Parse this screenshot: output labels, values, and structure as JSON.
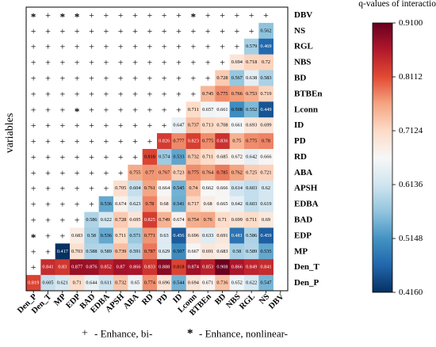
{
  "chart_data": {
    "type": "heatmap",
    "ylabel": "variables",
    "colorbar": {
      "title": "q-values of interaction",
      "min": 0.416,
      "max": 0.91,
      "ticks": [
        "0.9100",
        "0.8112",
        "0.7124",
        "0.6136",
        "0.5148",
        "0.4160"
      ],
      "colors": [
        "#053061",
        "#2166ac",
        "#4393c3",
        "#92c5de",
        "#d1e5f0",
        "#f7f7f7",
        "#fddbc7",
        "#f4a582",
        "#e34a33",
        "#b2182b",
        "#67001f"
      ]
    },
    "variables": [
      "Den_P",
      "Den_T",
      "MP",
      "EDP",
      "BAD",
      "EDBA",
      "APSH",
      "ABA",
      "RD",
      "PD",
      "ID",
      "Lconn",
      "BTBEn",
      "BD",
      "NBS",
      "RGL",
      "NS",
      "DBV"
    ],
    "rows": [
      {
        "label": "DBV",
        "values": [],
        "marks": [
          "*",
          "+",
          "*",
          "*",
          "+",
          "+",
          "+",
          "+",
          "+",
          "+",
          "+",
          "*",
          "+",
          "+",
          "+",
          "+",
          "+"
        ]
      },
      {
        "label": "NS",
        "values": [
          "0.562"
        ],
        "marks": [
          "+",
          "+",
          "+",
          "+",
          "+",
          "+",
          "+",
          "+",
          "+",
          "+",
          "+",
          "+",
          "+",
          "+",
          "+",
          "+"
        ]
      },
      {
        "label": "RGL",
        "values": [
          "0.579",
          "0.469"
        ],
        "marks": [
          "+",
          "+",
          "+",
          "+",
          "+",
          "+",
          "+",
          "+",
          "+",
          "+",
          "+",
          "+",
          "+",
          "+",
          "+"
        ]
      },
      {
        "label": "NBS",
        "values": [
          "0.694",
          "0.718",
          "0.72"
        ],
        "marks": [
          "+",
          "+",
          "+",
          "+",
          "+",
          "+",
          "+",
          "+",
          "+",
          "+",
          "+",
          "+",
          "+",
          "+"
        ]
      },
      {
        "label": "BD",
        "values": [
          "0.728",
          "0.567",
          "0.638",
          "0.583"
        ],
        "marks": [
          "+",
          "+",
          "+",
          "+",
          "+",
          "+",
          "+",
          "+",
          "+",
          "+",
          "+",
          "+",
          "+"
        ]
      },
      {
        "label": "BTBEn",
        "values": [
          "0.745",
          "0.775",
          "0.766",
          "0.753",
          "0.719"
        ],
        "marks": [
          "+",
          "+",
          "+",
          "+",
          "+",
          "+",
          "+",
          "+",
          "+",
          "+",
          "+",
          "+"
        ]
      },
      {
        "label": "Lconn",
        "values": [
          "0.711",
          "0.657",
          "0.661",
          "0.508",
          "0.552",
          "0.449"
        ],
        "marks": [
          "+",
          "+",
          "+",
          "*",
          "+",
          "+",
          "+",
          "+",
          "+",
          "+",
          "+"
        ]
      },
      {
        "label": "ID",
        "values": [
          "0.647",
          "0.737",
          "0.713",
          "0.708",
          "0.661",
          "0.693",
          "0.699"
        ],
        "marks": [
          "+",
          "+",
          "+",
          "+",
          "+",
          "+",
          "+",
          "+",
          "+",
          "+"
        ]
      },
      {
        "label": "PD",
        "values": [
          "0.826",
          "0.777",
          "0.823",
          "0.775",
          "0.836",
          "0.75",
          "0.775",
          "0.78"
        ],
        "marks": [
          "+",
          "+",
          "+",
          "+",
          "+",
          "+",
          "+",
          "+",
          "+"
        ]
      },
      {
        "label": "RD",
        "values": [
          "0.818",
          "0.574",
          "0.533",
          "0.732",
          "0.711",
          "0.685",
          "0.672",
          "0.642",
          "0.666"
        ],
        "marks": [
          "+",
          "+",
          "+",
          "+",
          "+",
          "+",
          "+",
          "+"
        ]
      },
      {
        "label": "ABA",
        "values": [
          "0.755",
          "0.77",
          "0.767",
          "0.723",
          "0.775",
          "0.764",
          "0.785",
          "0.762",
          "0.725",
          "0.721"
        ],
        "marks": [
          "+",
          "+",
          "+",
          "+",
          "+",
          "+",
          "+"
        ]
      },
      {
        "label": "APSH",
        "values": [
          "0.705",
          "0.604",
          "0.761",
          "0.664",
          "0.545",
          "0.74",
          "0.662",
          "0.666",
          "0.614",
          "0.603",
          "0.62"
        ],
        "marks": [
          "+",
          "+",
          "+",
          "+",
          "+",
          "+"
        ]
      },
      {
        "label": "EDBA",
        "values": [
          "0.536",
          "0.674",
          "0.623",
          "0.78",
          "0.68",
          "0.541",
          "0.717",
          "0.68",
          "0.665",
          "0.642",
          "0.603",
          "0.619"
        ],
        "marks": [
          "+",
          "+",
          "+",
          "+",
          "+"
        ]
      },
      {
        "label": "BAD",
        "values": [
          "0.586",
          "0.622",
          "0.728",
          "0.695",
          "0.825",
          "0.749",
          "0.674",
          "0.754",
          "0.76",
          "0.71",
          "0.699",
          "0.711",
          "0.69"
        ],
        "marks": [
          "+",
          "+",
          "+",
          "+"
        ]
      },
      {
        "label": "EDP",
        "values": [
          "0.683",
          "0.58",
          "0.536",
          "0.711",
          "0.571",
          "0.771",
          "0.63",
          "0.456",
          "0.696",
          "0.633",
          "0.691",
          "0.481",
          "0.586",
          "0.459"
        ],
        "marks": [
          "*",
          "+",
          "+"
        ]
      },
      {
        "label": "MP",
        "values": [
          "0.417",
          "0.703",
          "0.588",
          "0.589",
          "0.739",
          "0.591",
          "0.787",
          "0.629",
          "0.507",
          "0.667",
          "0.691",
          "0.683",
          "0.58",
          "0.589",
          "0.535"
        ],
        "marks": [
          "+",
          "+"
        ]
      },
      {
        "label": "Den_T",
        "values": [
          "0.841",
          "0.83",
          "0.877",
          "0.876",
          "0.852",
          "0.87",
          "0.866",
          "0.833",
          "0.888",
          "0.818",
          "0.874",
          "0.853",
          "0.908",
          "0.866",
          "0.849",
          "0.841"
        ],
        "marks": [
          "+"
        ]
      },
      {
        "label": "Den_P",
        "values": [
          "0.819",
          "0.605",
          "0.621",
          "0.71",
          "0.644",
          "0.611",
          "0.732",
          "0.65",
          "0.774",
          "0.696",
          "0.544",
          "0.694",
          "0.671",
          "0.736",
          "0.652",
          "0.622",
          "0.547"
        ],
        "marks": []
      }
    ]
  },
  "legend": {
    "plus_symbol": "+",
    "plus_text": "- Enhance, bi-",
    "star_symbol": "*",
    "star_text": "- Enhance, nonlinear-"
  }
}
